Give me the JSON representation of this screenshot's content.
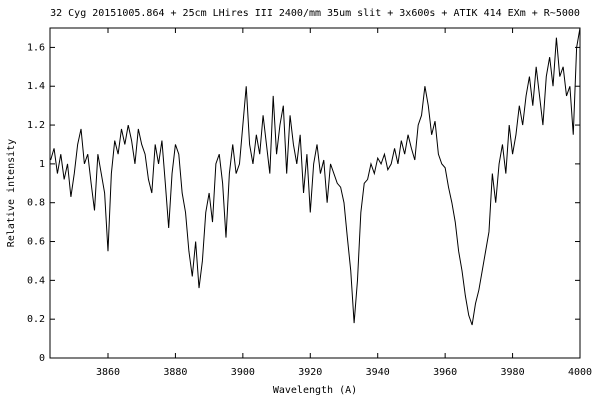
{
  "chart_data": {
    "type": "line",
    "title": "32 Cyg 20151005.864 + 25cm LHires III 2400/mm 35um slit + 3x600s + ATIK 414 EXm + R~5000",
    "x_label": "Wavelength (A)",
    "y_label": "Relative intensity",
    "xlim": [
      3842.8,
      4000
    ],
    "ylim": [
      0,
      1.7
    ],
    "xticks": [
      3860,
      3880,
      3900,
      3920,
      3940,
      3960,
      3980,
      4000
    ],
    "yticks": [
      0,
      0.2,
      0.4,
      0.6,
      0.8,
      1,
      1.2,
      1.4,
      1.6
    ],
    "grid": false,
    "x": [
      3843,
      3844,
      3845,
      3846,
      3847,
      3848,
      3849,
      3850,
      3851,
      3852,
      3853,
      3854,
      3855,
      3856,
      3857,
      3858,
      3859,
      3860,
      3861,
      3862,
      3863,
      3864,
      3865,
      3866,
      3867,
      3868,
      3869,
      3870,
      3871,
      3872,
      3873,
      3874,
      3875,
      3876,
      3877,
      3878,
      3879,
      3880,
      3881,
      3882,
      3883,
      3884,
      3885,
      3886,
      3887,
      3888,
      3889,
      3890,
      3891,
      3892,
      3893,
      3894,
      3895,
      3896,
      3897,
      3898,
      3899,
      3900,
      3901,
      3902,
      3903,
      3904,
      3905,
      3906,
      3907,
      3908,
      3909,
      3910,
      3911,
      3912,
      3913,
      3914,
      3915,
      3916,
      3917,
      3918,
      3919,
      3920,
      3921,
      3922,
      3923,
      3924,
      3925,
      3926,
      3927,
      3928,
      3929,
      3930,
      3931,
      3932,
      3933,
      3934,
      3935,
      3936,
      3937,
      3938,
      3939,
      3940,
      3941,
      3942,
      3943,
      3944,
      3945,
      3946,
      3947,
      3948,
      3949,
      3950,
      3951,
      3952,
      3953,
      3954,
      3955,
      3956,
      3957,
      3958,
      3959,
      3960,
      3961,
      3962,
      3963,
      3964,
      3965,
      3966,
      3967,
      3968,
      3969,
      3970,
      3971,
      3972,
      3973,
      3974,
      3975,
      3976,
      3977,
      3978,
      3979,
      3980,
      3981,
      3982,
      3983,
      3984,
      3985,
      3986,
      3987,
      3988,
      3989,
      3990,
      3991,
      3992,
      3993,
      3994,
      3995,
      3996,
      3997,
      3998,
      3999,
      4000
    ],
    "series": [
      {
        "color": "#000000",
        "values": [
          1.02,
          1.08,
          0.95,
          1.05,
          0.92,
          1.0,
          0.83,
          0.95,
          1.1,
          1.18,
          1.0,
          1.05,
          0.9,
          0.76,
          1.05,
          0.95,
          0.85,
          0.55,
          0.95,
          1.12,
          1.05,
          1.18,
          1.1,
          1.2,
          1.12,
          1.0,
          1.18,
          1.1,
          1.05,
          0.92,
          0.85,
          1.1,
          1.0,
          1.12,
          0.9,
          0.67,
          0.95,
          1.1,
          1.05,
          0.85,
          0.75,
          0.55,
          0.42,
          0.6,
          0.36,
          0.5,
          0.75,
          0.85,
          0.7,
          1.0,
          1.05,
          0.9,
          0.62,
          0.95,
          1.1,
          0.95,
          1.0,
          1.2,
          1.4,
          1.1,
          1.0,
          1.15,
          1.05,
          1.25,
          1.1,
          0.95,
          1.35,
          1.05,
          1.2,
          1.3,
          0.95,
          1.25,
          1.1,
          1.0,
          1.15,
          0.85,
          1.05,
          0.75,
          1.0,
          1.1,
          0.95,
          1.02,
          0.8,
          1.0,
          0.95,
          0.9,
          0.88,
          0.8,
          0.62,
          0.45,
          0.18,
          0.4,
          0.75,
          0.9,
          0.92,
          1.0,
          0.95,
          1.03,
          1.0,
          1.05,
          0.97,
          1.0,
          1.08,
          1.0,
          1.12,
          1.05,
          1.15,
          1.08,
          1.02,
          1.2,
          1.25,
          1.4,
          1.3,
          1.15,
          1.22,
          1.05,
          1.0,
          0.98,
          0.88,
          0.8,
          0.7,
          0.55,
          0.45,
          0.32,
          0.22,
          0.17,
          0.28,
          0.35,
          0.45,
          0.55,
          0.65,
          0.95,
          0.8,
          1.0,
          1.1,
          0.95,
          1.2,
          1.05,
          1.15,
          1.3,
          1.2,
          1.35,
          1.45,
          1.3,
          1.5,
          1.35,
          1.2,
          1.45,
          1.55,
          1.4,
          1.65,
          1.45,
          1.5,
          1.35,
          1.4,
          1.15,
          1.6,
          1.7
        ]
      }
    ]
  }
}
